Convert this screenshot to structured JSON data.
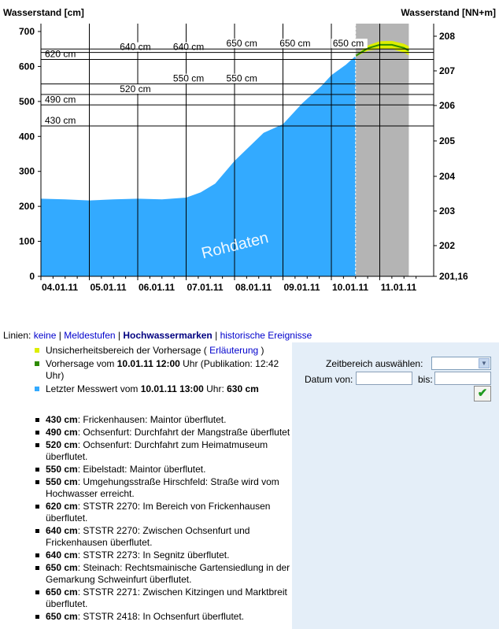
{
  "chart_data": {
    "type": "area",
    "title_left": "Wasserstand [cm]",
    "title_right": "Wasserstand [NN+m]",
    "watermark": "Rohdaten",
    "ylim": [
      0,
      720
    ],
    "y_ticks": [
      "0",
      "100",
      "200",
      "300",
      "400",
      "500",
      "600",
      "700"
    ],
    "y2_ticks": [
      "201,16",
      "202",
      "203",
      "204",
      "205",
      "206",
      "207",
      "208"
    ],
    "x_ticks": [
      "04.01.11",
      "05.01.11",
      "06.01.11",
      "07.01.11",
      "08.01.11",
      "09.01.11",
      "10.01.11",
      "11.01.11"
    ],
    "measured_series": {
      "name": "Letzter Messwert",
      "color": "#33aaff",
      "points": [
        [
          0,
          222
        ],
        [
          0.5,
          220
        ],
        [
          1,
          217
        ],
        [
          1.5,
          220
        ],
        [
          2,
          222
        ],
        [
          2.5,
          220
        ],
        [
          3,
          225
        ],
        [
          3.3,
          240
        ],
        [
          3.6,
          265
        ],
        [
          4,
          330
        ],
        [
          4.3,
          370
        ],
        [
          4.6,
          410
        ],
        [
          5,
          435
        ],
        [
          5.4,
          495
        ],
        [
          5.8,
          545
        ],
        [
          6,
          575
        ],
        [
          6.3,
          605
        ],
        [
          6.5,
          630
        ]
      ]
    },
    "forecast_series": {
      "name": "Vorhersage",
      "color": "#2e8b00",
      "uncertainty_color": "#ddee00",
      "points": [
        [
          6.5,
          630
        ],
        [
          6.75,
          652
        ],
        [
          7,
          662
        ],
        [
          7.25,
          662
        ],
        [
          7.5,
          653
        ],
        [
          7.6,
          645
        ]
      ],
      "band": [
        [
          6.5,
          628,
          632
        ],
        [
          6.75,
          645,
          660
        ],
        [
          7,
          650,
          672
        ],
        [
          7.25,
          650,
          673
        ],
        [
          7.5,
          640,
          665
        ],
        [
          7.6,
          632,
          658
        ]
      ]
    },
    "forecast_region": {
      "from": 6.5,
      "to": 7.6,
      "color": "#b4b4b4"
    },
    "thresholds": [
      {
        "value": 430,
        "label": "430 cm",
        "labels_at": [
          0
        ]
      },
      {
        "value": 490,
        "label": "490 cm",
        "labels_at": [
          0
        ]
      },
      {
        "value": 520,
        "label": "520 cm",
        "labels_at": [
          1.5
        ]
      },
      {
        "value": 550,
        "label": "550 cm",
        "labels_at": [
          2.6,
          3.7
        ]
      },
      {
        "value": 620,
        "label": "620 cm",
        "labels_at": [
          0
        ]
      },
      {
        "value": 640,
        "label": "640 cm",
        "labels_at": [
          1.5,
          2.6
        ]
      },
      {
        "value": 650,
        "label": "650 cm",
        "labels_at": [
          3.7,
          4.8,
          5.9
        ]
      }
    ]
  },
  "nav": {
    "prefix": "Linien:",
    "items": [
      {
        "label": "keine"
      },
      {
        "label": "Meldestufen"
      },
      {
        "label": "Hochwassermarken"
      },
      {
        "label": "historische Ereignisse"
      }
    ]
  },
  "legend": {
    "uncertainty": {
      "text": "Unsicherheitsbereich der Vorhersage (",
      "link": "Erläuterung",
      "after": ")",
      "color": "#ddee00"
    },
    "forecast": {
      "pre": "Vorhersage vom ",
      "date": "10.01.11 12:00",
      "post": " Uhr (Publikation: 12:42 Uhr)",
      "color": "#2e8b00"
    },
    "measured": {
      "pre": "Letzter Messwert vom ",
      "date": "10.01.11 13:00",
      "mid": " Uhr: ",
      "value": "630 cm",
      "color": "#33aaff"
    }
  },
  "marks": [
    {
      "value": "430 cm",
      "text": ": Frickenhausen: Maintor überflutet."
    },
    {
      "value": "490 cm",
      "text": ": Ochsenfurt: Durchfahrt der Mangstraße überflutet"
    },
    {
      "value": "520 cm",
      "text": ": Ochsenfurt: Durchfahrt zum Heimatmuseum überflutet."
    },
    {
      "value": "550 cm",
      "text": ": Eibelstadt: Maintor überflutet."
    },
    {
      "value": "550 cm",
      "text": ": Umgehungsstraße Hirschfeld: Straße wird vom Hochwasser erreicht."
    },
    {
      "value": "620 cm",
      "text": ": STSTR 2270: Im Bereich von Frickenhausen überflutet."
    },
    {
      "value": "640 cm",
      "text": ": STSTR 2270: Zwischen Ochsenfurt und Frickenhausen überflutet."
    },
    {
      "value": "640 cm",
      "text": ": STSTR 2273: In Segnitz überflutet."
    },
    {
      "value": "650 cm",
      "text": ": Steinach: Rechtsmainische Gartensiedlung in der Gemarkung Schweinfurt überflutet."
    },
    {
      "value": "650 cm",
      "text": ": STSTR 2271: Zwischen Kitzingen und Marktbreit überflutet."
    },
    {
      "value": "650 cm",
      "text": ": STSTR 2418: In Ochsenfurt überflutet."
    }
  ],
  "form": {
    "range_label": "Zeitbereich auswählen:",
    "range_value": "",
    "from_label": "Datum von:",
    "from_value": "",
    "to_label": "bis:",
    "to_value": ""
  }
}
